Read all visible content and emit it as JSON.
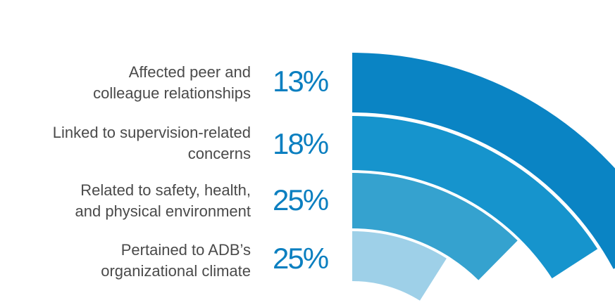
{
  "chart_data": {
    "type": "radial_bar",
    "title": "",
    "categories": [
      [
        "Affected peer and",
        "colleague relationships"
      ],
      [
        "Linked to supervision-related",
        "concerns"
      ],
      [
        "Related to safety, health,",
        "and physical environment"
      ],
      [
        "Pertained to ADB’s",
        "organizational climate"
      ]
    ],
    "values": [
      13,
      18,
      25,
      25
    ],
    "value_labels": [
      "13%",
      "18%",
      "25%",
      "25%"
    ],
    "unit": "%",
    "colors": [
      "#9ed0e8",
      "#35a2cf",
      "#1694cd",
      "#0a84c4"
    ],
    "label_color": "#4a4a4a",
    "value_color": "#0b7fc0"
  }
}
